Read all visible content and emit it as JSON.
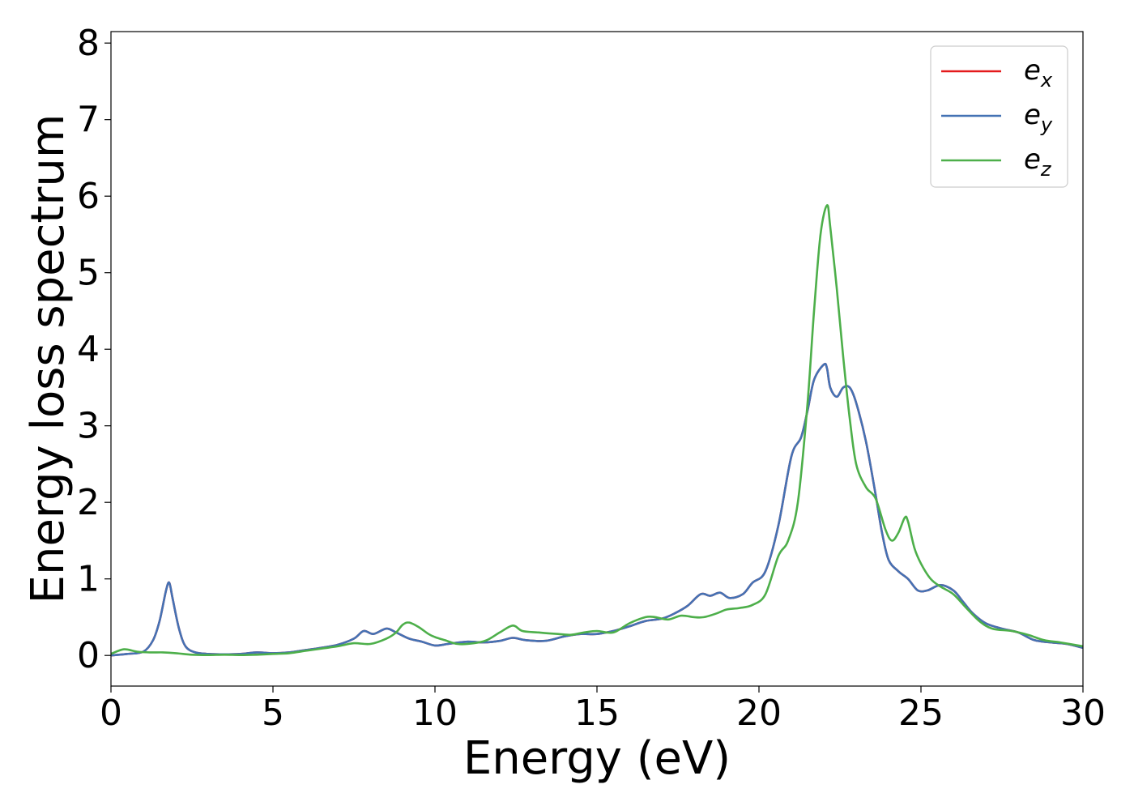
{
  "chart_data": {
    "type": "line",
    "xlabel": "Energy (eV)",
    "ylabel": "Energy loss spectrum",
    "xlim": [
      0,
      30
    ],
    "ylim": [
      -0.4,
      8.15
    ],
    "xticks": [
      "0",
      "5",
      "10",
      "15",
      "20",
      "25",
      "30"
    ],
    "yticks": [
      "0",
      "1",
      "2",
      "3",
      "4",
      "5",
      "6",
      "7",
      "8"
    ],
    "grid": false,
    "legend_position": "top-right",
    "series": [
      {
        "name": "e_x",
        "legend_base": "e",
        "legend_sub": "x",
        "color": "#e41a1c",
        "x": [
          0,
          0.5,
          1.0,
          1.3,
          1.5,
          1.7,
          1.8,
          1.9,
          2.1,
          2.3,
          2.6,
          3,
          3.5,
          4,
          4.5,
          5,
          5.5,
          6,
          6.5,
          7,
          7.5,
          7.8,
          8.1,
          8.5,
          8.8,
          9.2,
          9.6,
          10,
          10.4,
          11,
          11.5,
          12,
          12.4,
          12.8,
          13.4,
          14,
          14.5,
          15,
          15.5,
          16,
          16.5,
          17,
          17.4,
          17.8,
          18.2,
          18.5,
          18.8,
          19.1,
          19.5,
          19.8,
          20.2,
          20.6,
          21.0,
          21.3,
          21.5,
          21.7,
          22.0,
          22.1,
          22.2,
          22.4,
          22.6,
          22.8,
          23.0,
          23.3,
          23.6,
          23.8,
          24.0,
          24.3,
          24.6,
          24.9,
          25.2,
          25.6,
          26.0,
          26.3,
          26.6,
          27,
          27.5,
          28,
          28.5,
          29,
          29.5,
          30
        ],
        "y": [
          0.0,
          0.02,
          0.05,
          0.2,
          0.45,
          0.85,
          0.95,
          0.75,
          0.35,
          0.12,
          0.04,
          0.02,
          0.015,
          0.02,
          0.04,
          0.03,
          0.04,
          0.07,
          0.1,
          0.14,
          0.22,
          0.32,
          0.28,
          0.35,
          0.3,
          0.22,
          0.18,
          0.13,
          0.15,
          0.18,
          0.17,
          0.19,
          0.23,
          0.2,
          0.19,
          0.25,
          0.28,
          0.28,
          0.32,
          0.38,
          0.45,
          0.48,
          0.55,
          0.65,
          0.8,
          0.78,
          0.82,
          0.75,
          0.8,
          0.95,
          1.1,
          1.7,
          2.6,
          2.85,
          3.2,
          3.6,
          3.8,
          3.75,
          3.5,
          3.38,
          3.5,
          3.5,
          3.3,
          2.8,
          2.1,
          1.6,
          1.25,
          1.1,
          1.0,
          0.85,
          0.85,
          0.92,
          0.85,
          0.7,
          0.55,
          0.42,
          0.35,
          0.3,
          0.2,
          0.17,
          0.15,
          0.1
        ]
      },
      {
        "name": "e_y",
        "legend_base": "e",
        "legend_sub": "y",
        "color": "#4472b4",
        "x": [
          0,
          0.5,
          1.0,
          1.3,
          1.5,
          1.7,
          1.8,
          1.9,
          2.1,
          2.3,
          2.6,
          3,
          3.5,
          4,
          4.5,
          5,
          5.5,
          6,
          6.5,
          7,
          7.5,
          7.8,
          8.1,
          8.5,
          8.8,
          9.2,
          9.6,
          10,
          10.4,
          11,
          11.5,
          12,
          12.4,
          12.8,
          13.4,
          14,
          14.5,
          15,
          15.5,
          16,
          16.5,
          17,
          17.4,
          17.8,
          18.2,
          18.5,
          18.8,
          19.1,
          19.5,
          19.8,
          20.2,
          20.6,
          21.0,
          21.3,
          21.5,
          21.7,
          22.0,
          22.1,
          22.2,
          22.4,
          22.6,
          22.8,
          23.0,
          23.3,
          23.6,
          23.8,
          24.0,
          24.3,
          24.6,
          24.9,
          25.2,
          25.6,
          26.0,
          26.3,
          26.6,
          27,
          27.5,
          28,
          28.5,
          29,
          29.5,
          30
        ],
        "y": [
          0.0,
          0.02,
          0.05,
          0.2,
          0.45,
          0.85,
          0.95,
          0.75,
          0.35,
          0.12,
          0.04,
          0.02,
          0.015,
          0.02,
          0.04,
          0.03,
          0.04,
          0.07,
          0.1,
          0.14,
          0.22,
          0.32,
          0.28,
          0.35,
          0.3,
          0.22,
          0.18,
          0.13,
          0.15,
          0.18,
          0.17,
          0.19,
          0.23,
          0.2,
          0.19,
          0.25,
          0.28,
          0.28,
          0.32,
          0.38,
          0.45,
          0.48,
          0.55,
          0.65,
          0.8,
          0.78,
          0.82,
          0.75,
          0.8,
          0.95,
          1.1,
          1.7,
          2.6,
          2.85,
          3.2,
          3.6,
          3.8,
          3.75,
          3.5,
          3.38,
          3.5,
          3.5,
          3.3,
          2.8,
          2.1,
          1.6,
          1.25,
          1.1,
          1.0,
          0.85,
          0.85,
          0.92,
          0.85,
          0.7,
          0.55,
          0.42,
          0.35,
          0.3,
          0.2,
          0.17,
          0.15,
          0.1
        ]
      },
      {
        "name": "e_z",
        "legend_base": "e",
        "legend_sub": "z",
        "color": "#4daf4a",
        "x": [
          0,
          0.4,
          0.8,
          1.2,
          1.6,
          2,
          2.5,
          3,
          3.5,
          4,
          4.5,
          5,
          5.5,
          6,
          6.5,
          7,
          7.5,
          8,
          8.5,
          8.8,
          9.0,
          9.2,
          9.5,
          9.8,
          10.0,
          10.3,
          10.7,
          11.2,
          11.6,
          12.0,
          12.4,
          12.7,
          13.2,
          13.8,
          14.2,
          14.6,
          15.0,
          15.5,
          16.0,
          16.5,
          16.8,
          17.2,
          17.6,
          18.0,
          18.3,
          18.7,
          19.0,
          19.4,
          19.8,
          20.2,
          20.6,
          20.9,
          21.2,
          21.5,
          21.7,
          21.9,
          22.1,
          22.2,
          22.4,
          22.6,
          22.8,
          23.0,
          23.3,
          23.6,
          23.9,
          24.1,
          24.3,
          24.5,
          24.6,
          24.8,
          25.0,
          25.3,
          25.6,
          26.0,
          26.4,
          26.8,
          27.2,
          27.8,
          28.3,
          28.8,
          29.3,
          30
        ],
        "y": [
          0.02,
          0.08,
          0.05,
          0.04,
          0.04,
          0.03,
          0.01,
          0.005,
          0.01,
          0.005,
          0.01,
          0.02,
          0.03,
          0.06,
          0.09,
          0.12,
          0.16,
          0.15,
          0.22,
          0.3,
          0.4,
          0.43,
          0.37,
          0.28,
          0.24,
          0.2,
          0.15,
          0.16,
          0.2,
          0.3,
          0.39,
          0.32,
          0.3,
          0.28,
          0.27,
          0.3,
          0.32,
          0.3,
          0.42,
          0.5,
          0.5,
          0.47,
          0.52,
          0.5,
          0.5,
          0.55,
          0.6,
          0.62,
          0.66,
          0.8,
          1.3,
          1.5,
          2.0,
          3.3,
          4.5,
          5.5,
          5.88,
          5.6,
          4.8,
          3.9,
          3.1,
          2.5,
          2.2,
          2.05,
          1.65,
          1.5,
          1.6,
          1.8,
          1.75,
          1.4,
          1.2,
          1.0,
          0.9,
          0.8,
          0.62,
          0.45,
          0.35,
          0.32,
          0.27,
          0.2,
          0.17,
          0.12
        ]
      }
    ]
  }
}
